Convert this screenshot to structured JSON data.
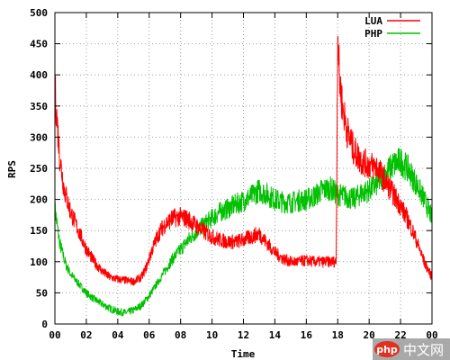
{
  "chart_data": {
    "type": "line",
    "xlabel": "Time",
    "ylabel": "RPS",
    "xlim": [
      0,
      24
    ],
    "ylim": [
      0,
      500
    ],
    "x_ticks": [
      "00",
      "02",
      "04",
      "06",
      "08",
      "10",
      "12",
      "14",
      "16",
      "18",
      "20",
      "22",
      "00"
    ],
    "y_ticks": [
      0,
      50,
      100,
      150,
      200,
      250,
      300,
      350,
      400,
      450,
      500
    ],
    "grid": true,
    "legend_position": "top-right",
    "series": [
      {
        "name": "LUA",
        "color": "#ff0000",
        "points": [
          [
            0,
            380
          ],
          [
            0.1,
            340
          ],
          [
            0.3,
            270
          ],
          [
            0.6,
            215
          ],
          [
            1.0,
            180
          ],
          [
            1.5,
            150
          ],
          [
            2.0,
            120
          ],
          [
            2.5,
            100
          ],
          [
            3.0,
            85
          ],
          [
            3.5,
            75
          ],
          [
            4.0,
            72
          ],
          [
            4.5,
            70
          ],
          [
            5.0,
            68
          ],
          [
            5.5,
            75
          ],
          [
            5.8,
            90
          ],
          [
            6.2,
            120
          ],
          [
            6.6,
            145
          ],
          [
            7.0,
            160
          ],
          [
            7.5,
            170
          ],
          [
            8.0,
            172
          ],
          [
            8.5,
            168
          ],
          [
            9.0,
            158
          ],
          [
            9.5,
            148
          ],
          [
            10.0,
            140
          ],
          [
            10.5,
            135
          ],
          [
            11.0,
            132
          ],
          [
            11.5,
            132
          ],
          [
            12.0,
            135
          ],
          [
            12.5,
            140
          ],
          [
            13.0,
            145
          ],
          [
            13.5,
            130
          ],
          [
            14.0,
            115
          ],
          [
            14.5,
            105
          ],
          [
            15.0,
            100
          ],
          [
            15.5,
            100
          ],
          [
            16.0,
            102
          ],
          [
            16.5,
            100
          ],
          [
            17.0,
            100
          ],
          [
            17.5,
            100
          ],
          [
            17.9,
            100
          ],
          [
            18.0,
            480
          ],
          [
            18.1,
            400
          ],
          [
            18.3,
            350
          ],
          [
            18.6,
            310
          ],
          [
            19.0,
            280
          ],
          [
            19.5,
            262
          ],
          [
            20.0,
            255
          ],
          [
            20.5,
            252
          ],
          [
            21.0,
            230
          ],
          [
            21.5,
            210
          ],
          [
            22.0,
            190
          ],
          [
            22.5,
            165
          ],
          [
            23.0,
            135
          ],
          [
            23.5,
            100
          ],
          [
            24.0,
            75
          ]
        ]
      },
      {
        "name": "PHP",
        "color": "#00c000",
        "points": [
          [
            0,
            185
          ],
          [
            0.3,
            130
          ],
          [
            0.7,
            95
          ],
          [
            1.0,
            80
          ],
          [
            1.5,
            65
          ],
          [
            2.0,
            50
          ],
          [
            2.5,
            40
          ],
          [
            3.0,
            32
          ],
          [
            3.5,
            25
          ],
          [
            4.0,
            20
          ],
          [
            4.5,
            18
          ],
          [
            5.0,
            22
          ],
          [
            5.5,
            30
          ],
          [
            6.0,
            45
          ],
          [
            6.5,
            65
          ],
          [
            7.0,
            85
          ],
          [
            7.5,
            105
          ],
          [
            8.0,
            120
          ],
          [
            8.5,
            135
          ],
          [
            9.0,
            148
          ],
          [
            9.5,
            160
          ],
          [
            10.0,
            170
          ],
          [
            10.5,
            180
          ],
          [
            11.0,
            185
          ],
          [
            11.5,
            192
          ],
          [
            12.0,
            198
          ],
          [
            12.5,
            205
          ],
          [
            13.0,
            215
          ],
          [
            13.5,
            208
          ],
          [
            14.0,
            200
          ],
          [
            14.5,
            196
          ],
          [
            15.0,
            195
          ],
          [
            15.5,
            198
          ],
          [
            16.0,
            200
          ],
          [
            16.5,
            205
          ],
          [
            17.0,
            215
          ],
          [
            17.5,
            218
          ],
          [
            18.0,
            208
          ],
          [
            18.5,
            205
          ],
          [
            19.0,
            200
          ],
          [
            19.5,
            210
          ],
          [
            20.0,
            215
          ],
          [
            20.5,
            225
          ],
          [
            21.0,
            240
          ],
          [
            21.5,
            255
          ],
          [
            22.0,
            262
          ],
          [
            22.5,
            248
          ],
          [
            23.0,
            225
          ],
          [
            23.5,
            200
          ],
          [
            24.0,
            170
          ]
        ]
      }
    ]
  },
  "watermark": {
    "badge": "php",
    "text": "中文网"
  }
}
